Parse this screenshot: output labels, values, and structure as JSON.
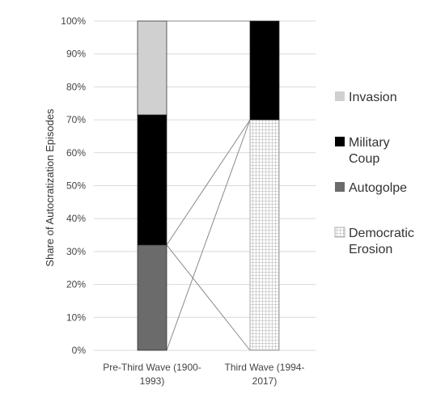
{
  "chart_data": {
    "type": "bar",
    "stacked": true,
    "percent_stacked": true,
    "title": "",
    "xlabel": "",
    "ylabel": "Share of Autocratization Episodes",
    "ylim": [
      0,
      100
    ],
    "yticks": [
      "0%",
      "10%",
      "20%",
      "30%",
      "40%",
      "50%",
      "60%",
      "70%",
      "80%",
      "90%",
      "100%"
    ],
    "grid": true,
    "legend_position": "right",
    "categories": [
      [
        "Pre-Third Wave (1900-",
        "1993)"
      ],
      [
        "Third Wave (1994-",
        "2017)"
      ]
    ],
    "series": [
      {
        "name": "Autogolpe",
        "legend_lines": [
          "Autogolpe"
        ],
        "color": "#6b6b6b",
        "pattern": "solid",
        "values": [
          32,
          0
        ]
      },
      {
        "name": "Democratic Erosion",
        "legend_lines": [
          "Democratic",
          "Erosion"
        ],
        "color": "#ffffff",
        "pattern": "grid",
        "values": [
          0,
          70
        ]
      },
      {
        "name": "Military Coup",
        "legend_lines": [
          "Military",
          "Coup"
        ],
        "color": "#000000",
        "pattern": "solid",
        "values": [
          39.5,
          30
        ]
      },
      {
        "name": "Invasion",
        "legend_lines": [
          "Invasion"
        ],
        "color": "#d0d0d0",
        "pattern": "solid",
        "values": [
          28.5,
          0
        ]
      }
    ],
    "legend_order": [
      "Invasion",
      "Military Coup",
      "Autogolpe",
      "Democratic Erosion"
    ]
  }
}
